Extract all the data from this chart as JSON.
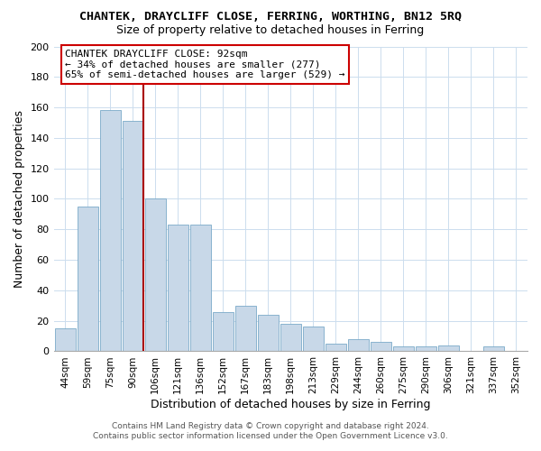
{
  "title": "CHANTEK, DRAYCLIFF CLOSE, FERRING, WORTHING, BN12 5RQ",
  "subtitle": "Size of property relative to detached houses in Ferring",
  "xlabel": "Distribution of detached houses by size in Ferring",
  "ylabel": "Number of detached properties",
  "categories": [
    "44sqm",
    "59sqm",
    "75sqm",
    "90sqm",
    "106sqm",
    "121sqm",
    "136sqm",
    "152sqm",
    "167sqm",
    "183sqm",
    "198sqm",
    "213sqm",
    "229sqm",
    "244sqm",
    "260sqm",
    "275sqm",
    "290sqm",
    "306sqm",
    "321sqm",
    "337sqm",
    "352sqm"
  ],
  "values": [
    15,
    95,
    158,
    151,
    100,
    83,
    83,
    26,
    30,
    24,
    18,
    16,
    5,
    8,
    6,
    3,
    3,
    4,
    0,
    3,
    0
  ],
  "bar_color": "#c8d8e8",
  "bar_edge_color": "#7aaac8",
  "highlight_index": 3,
  "highlight_edge_color": "#aa0000",
  "ylim": [
    0,
    200
  ],
  "yticks": [
    0,
    20,
    40,
    60,
    80,
    100,
    120,
    140,
    160,
    180,
    200
  ],
  "annotation_title": "CHANTEK DRAYCLIFF CLOSE: 92sqm",
  "annotation_line1": "← 34% of detached houses are smaller (277)",
  "annotation_line2": "65% of semi-detached houses are larger (529) →",
  "annotation_box_color": "#ffffff",
  "annotation_box_edge": "#cc0000",
  "footer_line1": "Contains HM Land Registry data © Crown copyright and database right 2024.",
  "footer_line2": "Contains public sector information licensed under the Open Government Licence v3.0.",
  "grid_color": "#ccddee",
  "background_color": "#ffffff"
}
